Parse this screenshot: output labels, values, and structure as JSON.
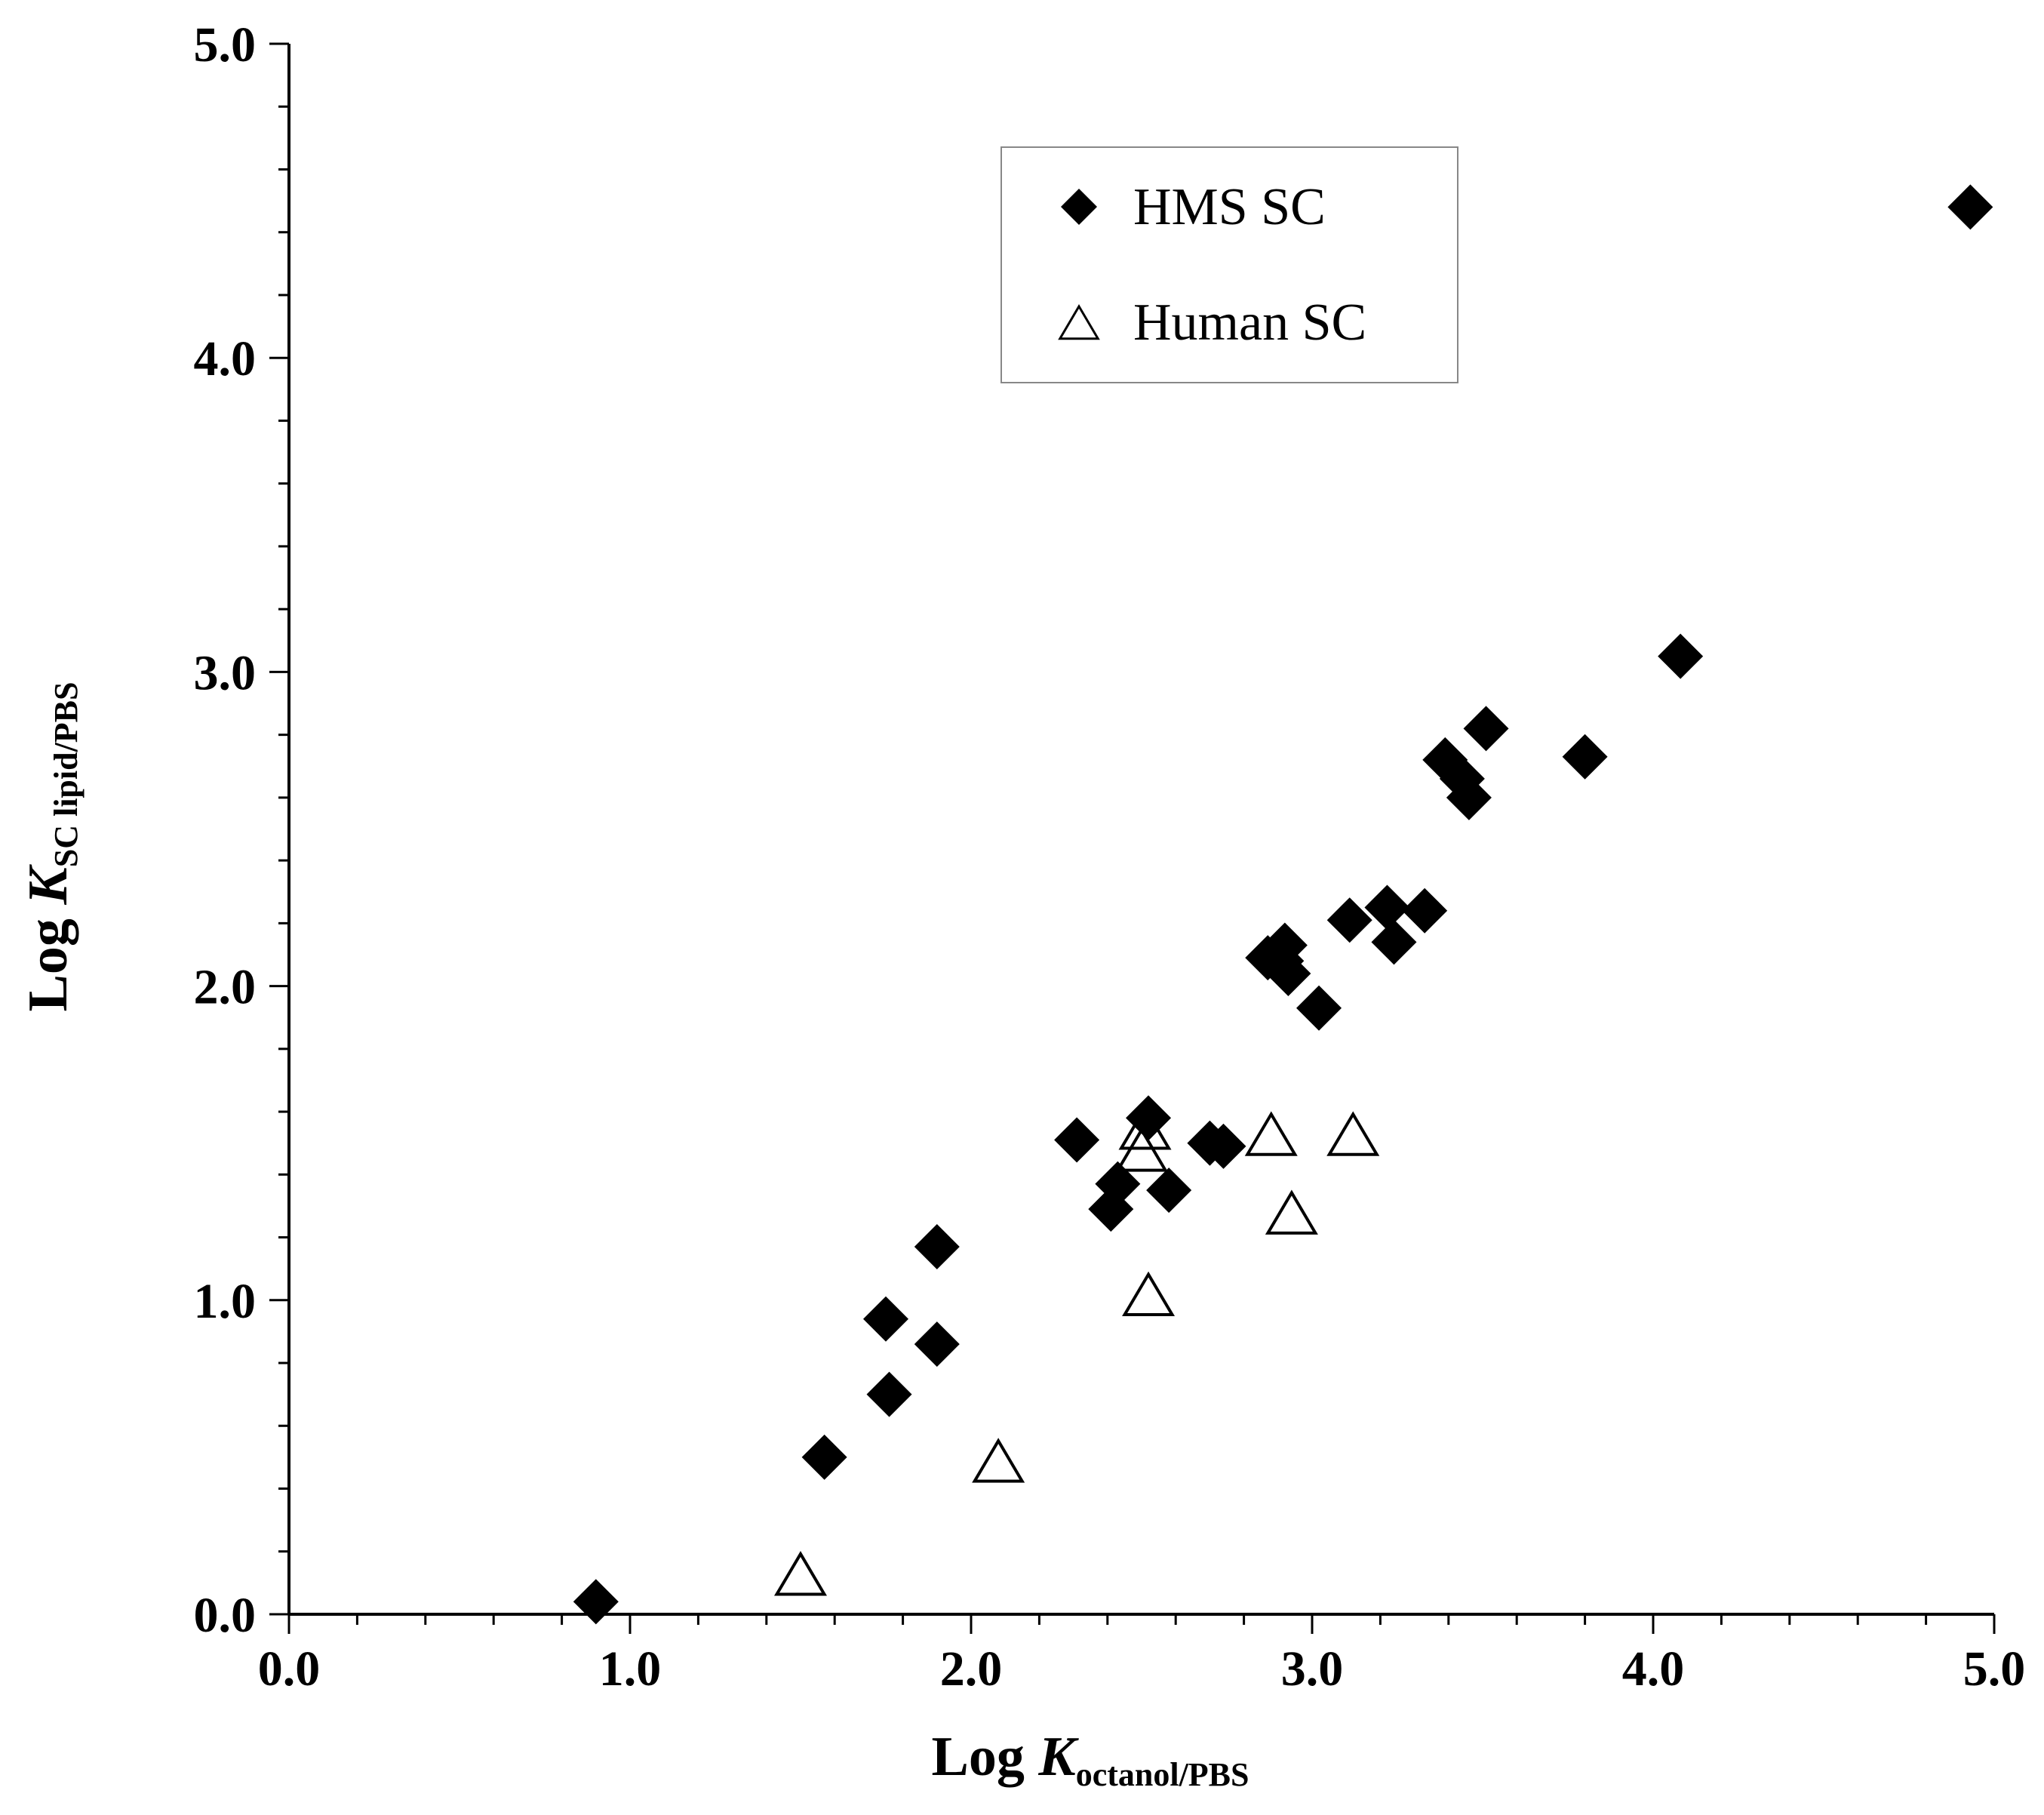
{
  "chart_data": {
    "type": "scatter",
    "xlabel": {
      "prefix": "Log ",
      "symbol": "K",
      "subscript": "octanol/PBS"
    },
    "ylabel": {
      "prefix": "Log ",
      "symbol": "K",
      "subscript": "SC lipid/PBS"
    },
    "xlim": [
      0,
      5
    ],
    "ylim": [
      0,
      5
    ],
    "x_ticks": [
      "0.0",
      "1.0",
      "2.0",
      "3.0",
      "4.0",
      "5.0"
    ],
    "y_ticks": [
      "0.0",
      "1.0",
      "2.0",
      "3.0",
      "4.0",
      "5.0"
    ],
    "grid": false,
    "legend_position": "top-center",
    "series": [
      {
        "name": "HMS SC",
        "marker": "filled-diamond",
        "color": "#000000",
        "points": [
          [
            0.9,
            0.04
          ],
          [
            1.57,
            0.5
          ],
          [
            1.76,
            0.7
          ],
          [
            1.75,
            0.94
          ],
          [
            1.9,
            0.86
          ],
          [
            1.9,
            1.17
          ],
          [
            2.31,
            1.51
          ],
          [
            2.41,
            1.29
          ],
          [
            2.43,
            1.37
          ],
          [
            2.58,
            1.35
          ],
          [
            2.52,
            1.58
          ],
          [
            2.7,
            1.5
          ],
          [
            2.74,
            1.49
          ],
          [
            2.87,
            2.09
          ],
          [
            2.91,
            2.08
          ],
          [
            2.92,
            2.13
          ],
          [
            2.93,
            2.04
          ],
          [
            3.02,
            1.93
          ],
          [
            3.11,
            2.21
          ],
          [
            3.22,
            2.25
          ],
          [
            3.24,
            2.14
          ],
          [
            3.33,
            2.24
          ],
          [
            3.39,
            2.72
          ],
          [
            3.44,
            2.66
          ],
          [
            3.46,
            2.6
          ],
          [
            3.51,
            2.82
          ],
          [
            3.8,
            2.73
          ],
          [
            4.08,
            3.05
          ],
          [
            4.93,
            4.48
          ]
        ]
      },
      {
        "name": "Human SC",
        "marker": "open-triangle",
        "color": "#000000",
        "points": [
          [
            1.5,
            0.12
          ],
          [
            2.08,
            0.48
          ],
          [
            2.52,
            1.01
          ],
          [
            2.5,
            1.47
          ],
          [
            2.51,
            1.54
          ],
          [
            2.88,
            1.52
          ],
          [
            2.94,
            1.27
          ],
          [
            3.12,
            1.52
          ]
        ]
      }
    ]
  }
}
